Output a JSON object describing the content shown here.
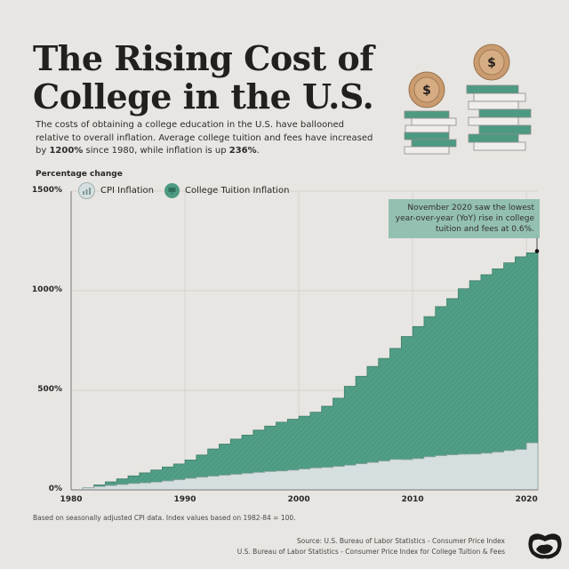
{
  "header": {
    "title_line1": "The Rising Cost of",
    "title_line2": "College in the U.S.",
    "subtitle_part1": "The costs of obtaining a college education in the U.S. have ballooned relative to overall inflation. Average college tuition and fees have increased by ",
    "subtitle_bold1": "1200%",
    "subtitle_part2": " since 1980, while inflation is up ",
    "subtitle_bold2": "236%",
    "subtitle_part3": "."
  },
  "illustration": {
    "icon": "coin-stacks-books-icon",
    "coin_symbol": "$"
  },
  "legend": {
    "items": [
      {
        "label": "CPI Inflation",
        "icon": "chart-icon",
        "color": "#d5dfe0"
      },
      {
        "label": "College Tuition Inflation",
        "icon": "graduation-icon",
        "color": "#4d9a82"
      }
    ]
  },
  "annotation": {
    "text": "November 2020 saw the lowest year-over-year (YoY) rise in college tuition and fees at 0.6%."
  },
  "footer": {
    "footnote": "Based on seasonally adjusted CPI data. Index values based on 1982-84 = 100.",
    "source_line1": "Source: U.S. Bureau of Labor Statistics - Consumer Price Index",
    "source_line2": "U.S. Bureau of Labor Statistics - Consumer Price Index for College Tuition & Fees",
    "logo": "visual-capitalist-logo-icon"
  },
  "chart_data": {
    "type": "area",
    "step": true,
    "title": "The Rising Cost of College in the U.S.",
    "ylabel": "Percentage change",
    "xlabel": "",
    "ylim": [
      0,
      1500
    ],
    "xlim": [
      1980,
      2021
    ],
    "y_ticks": [
      "0%",
      "500%",
      "1000%",
      "1500%"
    ],
    "y_tick_values": [
      0,
      500,
      1000,
      1500
    ],
    "x_ticks": [
      "1980",
      "1990",
      "2000",
      "2010",
      "2020"
    ],
    "x_tick_values": [
      1980,
      1990,
      2000,
      2010,
      2020
    ],
    "grid": true,
    "legend_position": "top-left",
    "x": [
      1980,
      1981,
      1982,
      1983,
      1984,
      1985,
      1986,
      1987,
      1988,
      1989,
      1990,
      1991,
      1992,
      1993,
      1994,
      1995,
      1996,
      1997,
      1998,
      1999,
      2000,
      2001,
      2002,
      2003,
      2004,
      2005,
      2006,
      2007,
      2008,
      2009,
      2010,
      2011,
      2012,
      2013,
      2014,
      2015,
      2016,
      2017,
      2018,
      2019,
      2020
    ],
    "series": [
      {
        "name": "College Tuition Inflation",
        "color": "#4d9a82",
        "values": [
          0,
          10,
          25,
          40,
          55,
          70,
          85,
          100,
          115,
          130,
          150,
          175,
          205,
          230,
          255,
          275,
          300,
          320,
          340,
          355,
          370,
          390,
          420,
          460,
          520,
          570,
          620,
          660,
          710,
          770,
          820,
          870,
          920,
          960,
          1010,
          1050,
          1080,
          1110,
          1140,
          1170,
          1190
        ]
      },
      {
        "name": "CPI Inflation",
        "color": "#d5dfe0",
        "values": [
          0,
          10,
          17,
          22,
          27,
          32,
          35,
          39,
          45,
          51,
          58,
          64,
          69,
          74,
          78,
          83,
          88,
          92,
          95,
          99,
          105,
          110,
          113,
          118,
          124,
          131,
          138,
          145,
          153,
          152,
          157,
          166,
          172,
          176,
          179,
          180,
          184,
          190,
          197,
          203,
          236
        ]
      }
    ],
    "annotations": [
      {
        "x": 2020.9,
        "y": 1190,
        "text": "November 2020 saw the lowest year-over-year (YoY) rise in college tuition and fees at 0.6%."
      }
    ]
  }
}
